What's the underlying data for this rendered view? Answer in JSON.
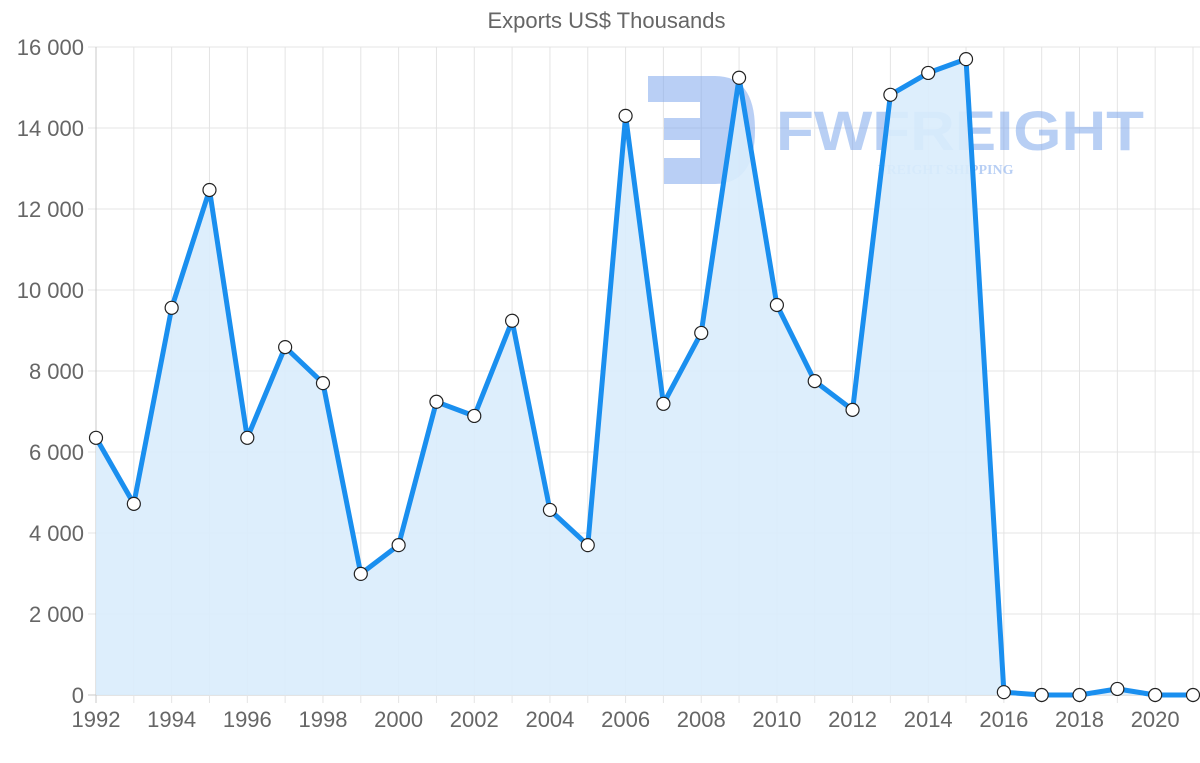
{
  "chart_data": {
    "type": "area",
    "title": "Exports US$ Thousands",
    "xlabel": "",
    "ylabel": "",
    "ylim": [
      0,
      16000
    ],
    "grid": true,
    "legend": "none",
    "y_ticks": [
      "0",
      "2 000",
      "4 000",
      "6 000",
      "8 000",
      "10 000",
      "12 000",
      "14 000",
      "16 000"
    ],
    "x_ticks": [
      "1992",
      "1994",
      "1996",
      "1998",
      "2000",
      "2002",
      "2004",
      "2006",
      "2008",
      "2010",
      "2012",
      "2014",
      "2016",
      "2018",
      "2020"
    ],
    "x": [
      1992,
      1993,
      1994,
      1995,
      1996,
      1997,
      1998,
      1999,
      2000,
      2001,
      2002,
      2003,
      2004,
      2005,
      2006,
      2007,
      2008,
      2009,
      2010,
      2011,
      2012,
      2013,
      2014,
      2015,
      2016,
      2017,
      2018,
      2019,
      2020,
      2021
    ],
    "series": [
      {
        "name": "Exports US$ Thousands",
        "color": "#1a8fef",
        "fill": "#d9ecfc",
        "values": [
          6350,
          4720,
          9560,
          12470,
          6350,
          8590,
          7700,
          2990,
          3700,
          7240,
          6890,
          9240,
          4570,
          3700,
          14300,
          7190,
          8940,
          15240,
          9630,
          7750,
          7040,
          14820,
          15360,
          15700,
          70,
          0,
          0,
          150,
          0,
          0
        ]
      }
    ]
  },
  "watermark": {
    "brand": "FWFREIGHT",
    "tagline": "FREIGHT SHIPPING"
  }
}
